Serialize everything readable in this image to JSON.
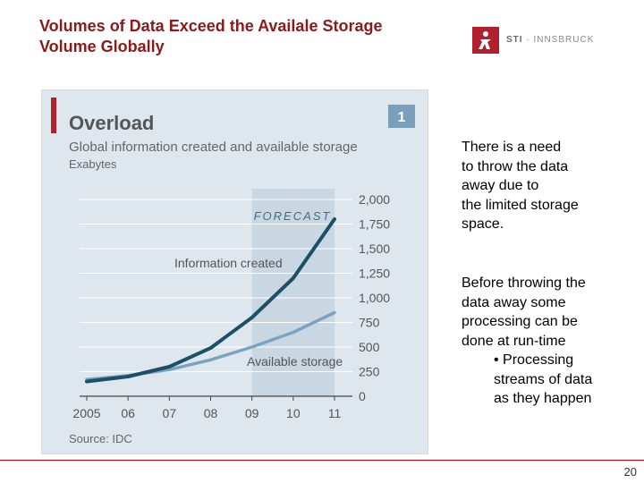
{
  "slide": {
    "title_line1": "Volumes of Data Exceed the Availale Storage",
    "title_line2": "Volume Globally",
    "logo_text": "STI",
    "logo_subtext": "· INNSBRUCK",
    "accent_color": "#b0212d",
    "page_number": "20"
  },
  "right_panel": {
    "para1_lines": [
      "There is a need",
      "to throw the data",
      "away due to",
      "the limited storage",
      "space."
    ],
    "para2_lines": [
      "Before throwing the",
      "data away some",
      "processing can be",
      "done at run-time"
    ],
    "bullet_lines": [
      "• Processing",
      "streams of data",
      "as they happen"
    ]
  },
  "chart_data": {
    "type": "line",
    "badge": "1",
    "title": "Overload",
    "subtitle": "Global information created and available storage",
    "ylabel": "Exabytes",
    "source": "Source: IDC",
    "forecast_label": "FORECAST",
    "forecast_range": [
      "09",
      "11"
    ],
    "categories": [
      "2005",
      "06",
      "07",
      "08",
      "09",
      "10",
      "11"
    ],
    "y_ticks": [
      "0",
      "250",
      "500",
      "750",
      "1,000",
      "1,250",
      "1,500",
      "1,750",
      "2,000"
    ],
    "ylim": [
      0,
      2000
    ],
    "series": [
      {
        "name": "Information created",
        "color": "#1c4f68",
        "x": [
          2005,
          2006,
          2007,
          2008,
          2009,
          2010,
          2011
        ],
        "values": [
          150,
          200,
          300,
          490,
          800,
          1200,
          1800
        ]
      },
      {
        "name": "Available storage",
        "color": "#7ba3c0",
        "x": [
          2005,
          2006,
          2007,
          2008,
          2009,
          2010,
          2011
        ],
        "values": [
          170,
          210,
          270,
          370,
          500,
          650,
          850
        ]
      }
    ]
  }
}
